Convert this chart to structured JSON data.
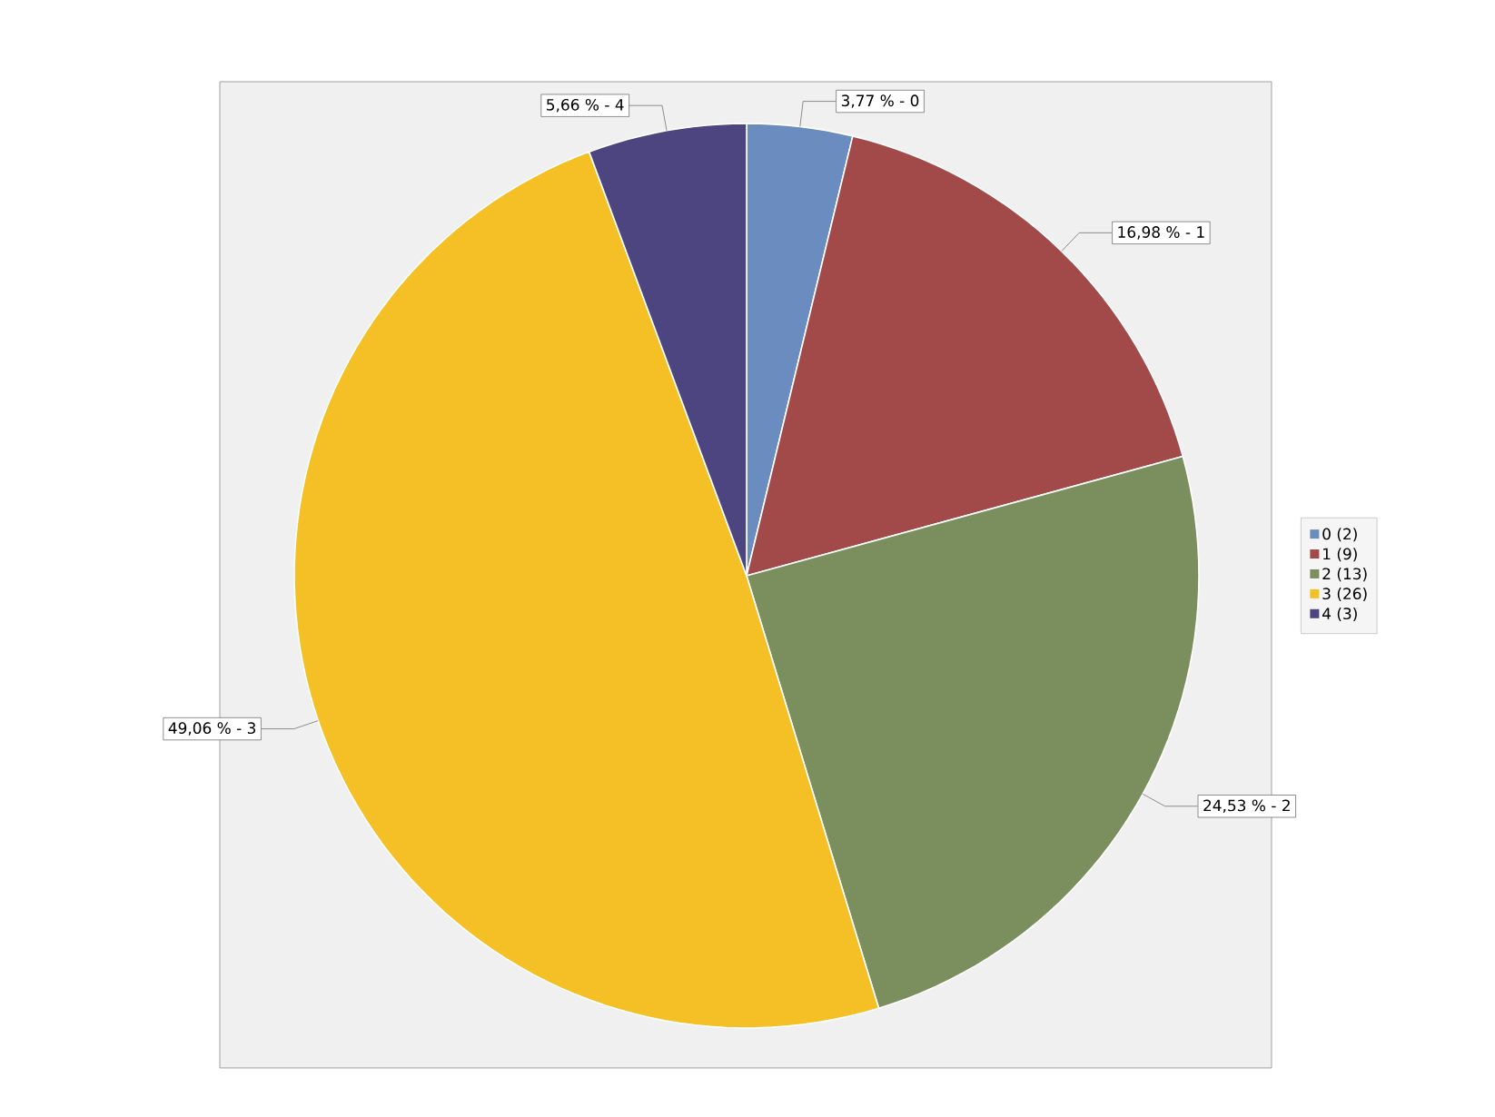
{
  "chart_data": {
    "type": "pie",
    "categories": [
      "0 (2)",
      "1 (9)",
      "2 (13)",
      "3 (26)",
      "4 (3)"
    ],
    "values": [
      3.77,
      16.98,
      24.53,
      49.06,
      5.66
    ],
    "colors": [
      "#6a8cbf",
      "#a24a4a",
      "#7b8f5e",
      "#f4c026",
      "#4d4580"
    ],
    "value_labels": [
      "3,77 % - 0",
      "16,98 % - 1",
      "24,53 % - 2",
      "49,06 % - 3",
      "5,66 % - 4"
    ],
    "legend": "right"
  }
}
